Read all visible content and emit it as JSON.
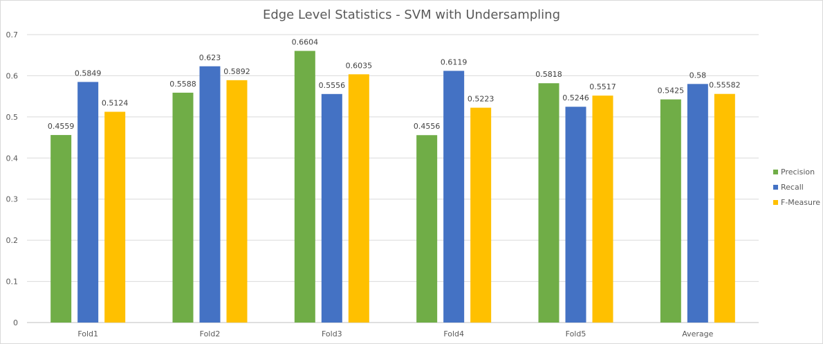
{
  "chart_data": {
    "type": "bar",
    "title": "Edge Level Statistics - SVM with Undersampling",
    "categories": [
      "Fold1",
      "Fold2",
      "Fold3",
      "Fold4",
      "Fold5",
      "Average"
    ],
    "series": [
      {
        "name": "Precision",
        "color": "#70AD47",
        "values": [
          0.4559,
          0.5588,
          0.6604,
          0.4556,
          0.5818,
          0.5425
        ],
        "labels": [
          "0.4559",
          "0.5588",
          "0.6604",
          "0.4556",
          "0.5818",
          "0.5425"
        ]
      },
      {
        "name": "Recall",
        "color": "#4472C4",
        "values": [
          0.5849,
          0.623,
          0.5556,
          0.6119,
          0.5246,
          0.58
        ],
        "labels": [
          "0.5849",
          "0.623",
          "0.5556",
          "0.6119",
          "0.5246",
          "0.58"
        ]
      },
      {
        "name": "F-Measure",
        "color": "#FFC000",
        "values": [
          0.5124,
          0.5892,
          0.6035,
          0.5223,
          0.5517,
          0.55582
        ],
        "labels": [
          "0.5124",
          "0.5892",
          "0.6035",
          "0.5223",
          "0.5517",
          "0.55582"
        ]
      }
    ],
    "ylim": [
      0,
      0.7
    ],
    "yticks": [
      "0",
      "0.1",
      "0.2",
      "0.3",
      "0.4",
      "0.5",
      "0.6",
      "0.7"
    ],
    "grid": true,
    "legend": "right"
  }
}
